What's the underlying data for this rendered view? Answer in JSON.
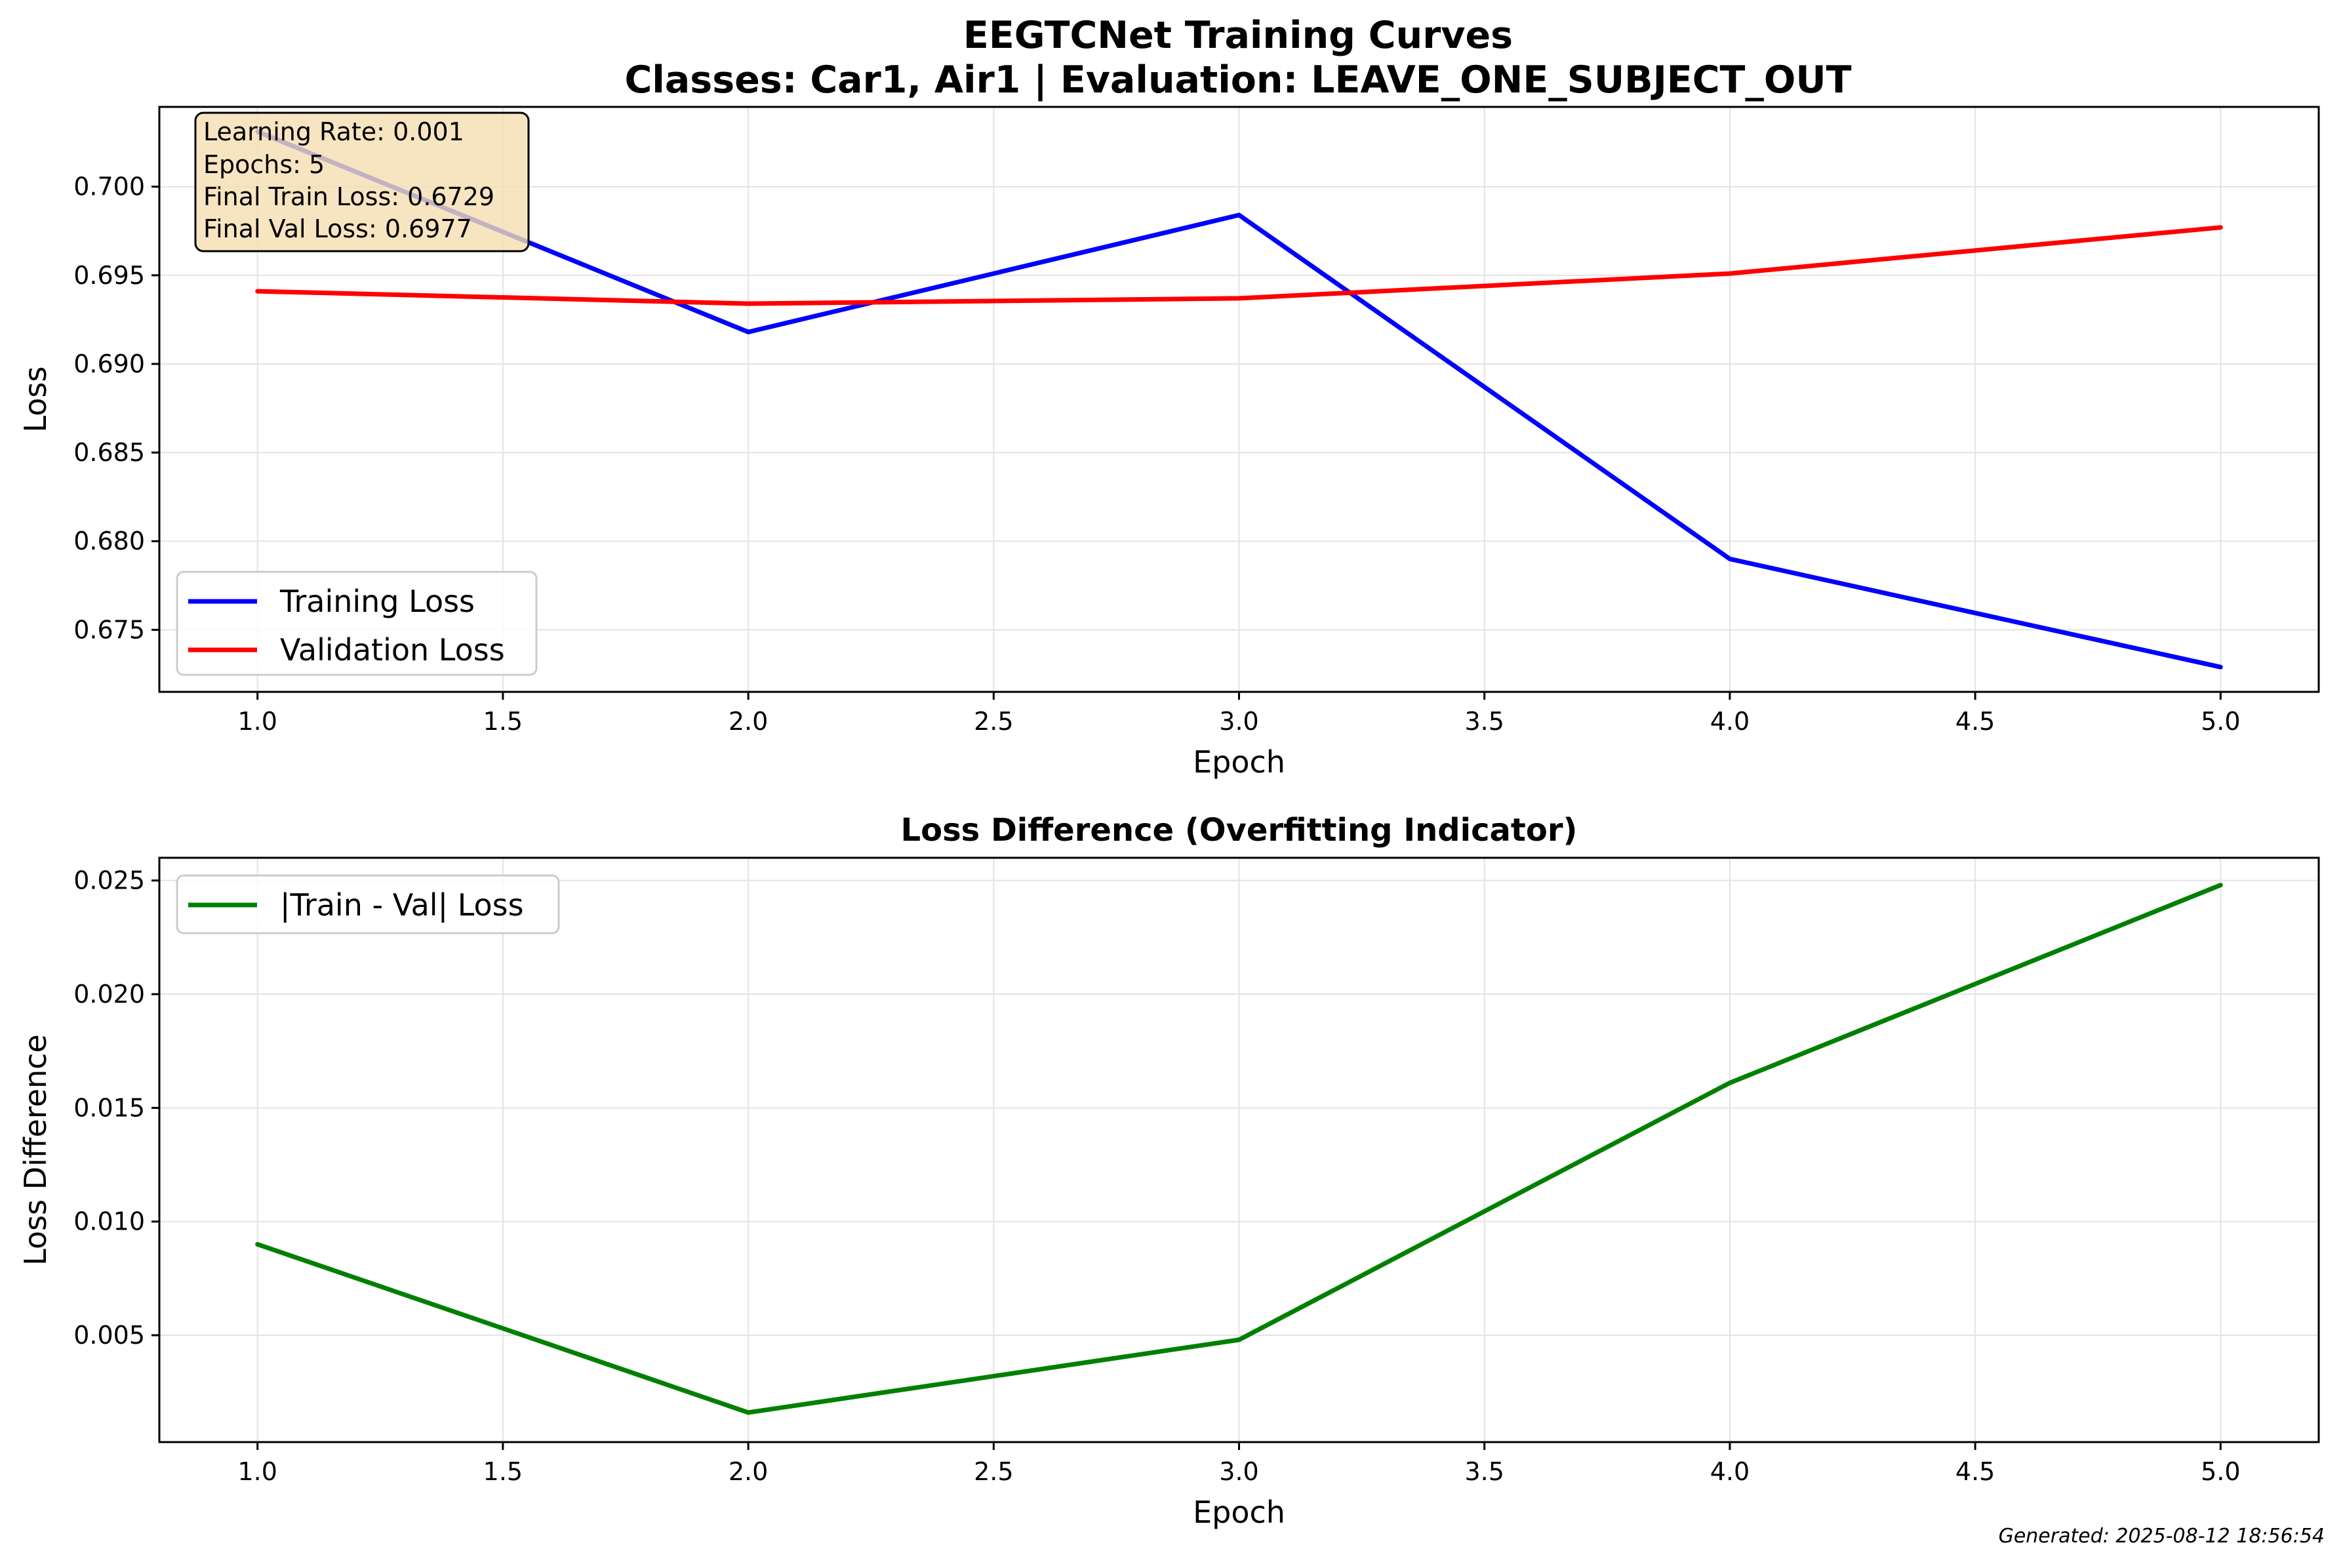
{
  "figure": {
    "title_line1": "EEGTCNet Training Curves",
    "title_line2": "Classes: Car1, Air1 | Evaluation: LEAVE_ONE_SUBJECT_OUT",
    "footer": "Generated: 2025-08-12 18:56:54"
  },
  "info_box": {
    "lines": [
      "Learning Rate: 0.001",
      "Epochs: 5",
      "Final Train Loss: 0.6729",
      "Final Val Loss: 0.6977"
    ],
    "background": "#f5deb3"
  },
  "chart_data": [
    {
      "type": "line",
      "title": "",
      "xlabel": "Epoch",
      "ylabel": "Loss",
      "xlim": [
        0.8,
        5.2
      ],
      "ylim": [
        0.6715,
        0.7045
      ],
      "xticks": [
        1.0,
        1.5,
        2.0,
        2.5,
        3.0,
        3.5,
        4.0,
        4.5,
        5.0
      ],
      "xtick_labels": [
        "1.0",
        "1.5",
        "2.0",
        "2.5",
        "3.0",
        "3.5",
        "4.0",
        "4.5",
        "5.0"
      ],
      "yticks": [
        0.675,
        0.68,
        0.685,
        0.69,
        0.695,
        0.7
      ],
      "ytick_labels": [
        "0.675",
        "0.680",
        "0.685",
        "0.690",
        "0.695",
        "0.700"
      ],
      "grid": true,
      "legend_position": "lower-left",
      "x": [
        1,
        2,
        3,
        4,
        5
      ],
      "series": [
        {
          "name": "Training Loss",
          "color": "#0000ff",
          "values": [
            0.7031,
            0.6918,
            0.6984,
            0.679,
            0.6729
          ]
        },
        {
          "name": "Validation Loss",
          "color": "#ff0000",
          "values": [
            0.6941,
            0.6934,
            0.6937,
            0.6951,
            0.6977
          ]
        }
      ]
    },
    {
      "type": "line",
      "title": "Loss Difference (Overfitting Indicator)",
      "xlabel": "Epoch",
      "ylabel": "Loss Difference",
      "xlim": [
        0.8,
        5.2
      ],
      "ylim": [
        0.0003,
        0.026
      ],
      "xticks": [
        1.0,
        1.5,
        2.0,
        2.5,
        3.0,
        3.5,
        4.0,
        4.5,
        5.0
      ],
      "xtick_labels": [
        "1.0",
        "1.5",
        "2.0",
        "2.5",
        "3.0",
        "3.5",
        "4.0",
        "4.5",
        "5.0"
      ],
      "yticks": [
        0.005,
        0.01,
        0.015,
        0.02,
        0.025
      ],
      "ytick_labels": [
        "0.005",
        "0.010",
        "0.015",
        "0.020",
        "0.025"
      ],
      "grid": true,
      "legend_position": "upper-left",
      "x": [
        1,
        2,
        3,
        4,
        5
      ],
      "series": [
        {
          "name": "|Train - Val| Loss",
          "color": "#008000",
          "values": [
            0.009,
            0.0016,
            0.0048,
            0.0161,
            0.0248
          ]
        }
      ]
    }
  ]
}
